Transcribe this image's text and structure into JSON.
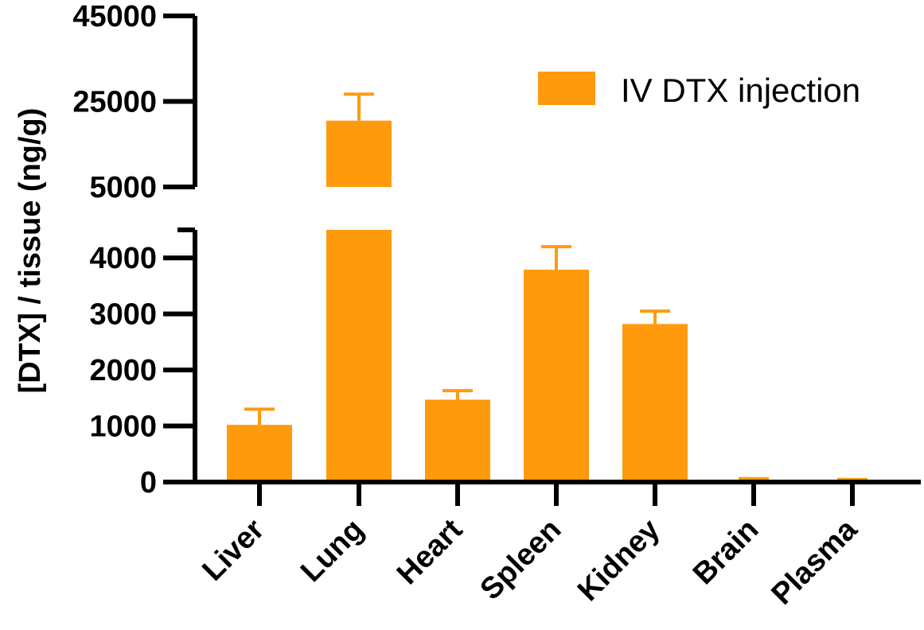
{
  "chart_data": {
    "type": "bar",
    "ylabel": "[DTX] / tissue (ng/g)",
    "categories": [
      "Liver",
      "Lung",
      "Heart",
      "Spleen",
      "Kidney",
      "Brain",
      "Plasma"
    ],
    "series": [
      {
        "name": "IV DTX injection",
        "values": [
          1020,
          20500,
          1470,
          3790,
          2820,
          40,
          30
        ],
        "error": [
          280,
          6200,
          160,
          410,
          230,
          20,
          15
        ]
      }
    ],
    "y_segments": [
      {
        "ylim": [
          0,
          4500
        ],
        "ticks": [
          0,
          1000,
          2000,
          3000,
          4000
        ]
      },
      {
        "ylim": [
          5000,
          45000
        ],
        "ticks": [
          5000,
          25000,
          45000
        ]
      }
    ],
    "y_break": [
      4500,
      5000
    ],
    "colors": {
      "bar": "#ff9a0d",
      "axis": "#000000"
    },
    "legend_position": "top-right",
    "grid": false
  }
}
